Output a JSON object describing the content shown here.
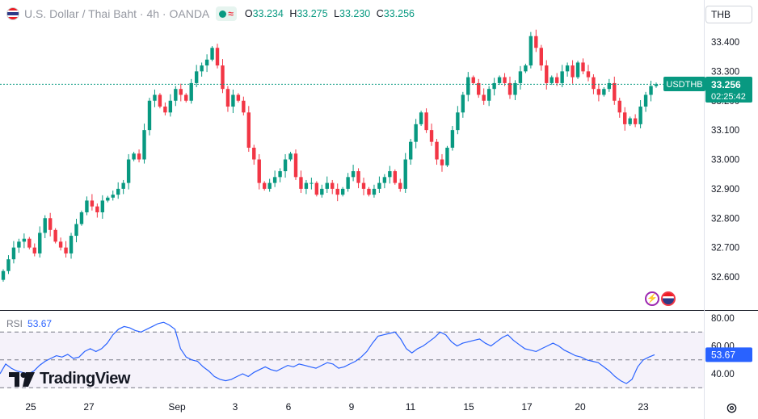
{
  "header": {
    "title": "U.S. Dollar / Thai Baht · 4h · OANDA",
    "open_label": "O",
    "open": "33.234",
    "high_label": "H",
    "high": "33.275",
    "low_label": "L",
    "low": "33.230",
    "close_label": "C",
    "close": "33.256",
    "currency": "THB"
  },
  "price_badge": {
    "symbol": "USDTHB",
    "price": "33.256",
    "countdown": "02:25:42"
  },
  "rsi": {
    "label": "RSI",
    "value": "53.67",
    "levels": [
      70,
      50,
      30
    ]
  },
  "branding": {
    "name": "TradingView"
  },
  "colors": {
    "up": "#089981",
    "down": "#f23645",
    "rsi_line": "#2962ff",
    "rsi_band": "#7e57c2"
  },
  "chart_data": {
    "type": "candlestick",
    "symbol": "USDTHB",
    "interval": "4h",
    "price_axis": {
      "ticks": [
        "33.400",
        "33.300",
        "33.200",
        "33.100",
        "33.000",
        "32.900",
        "32.800",
        "32.700",
        "32.600"
      ],
      "range": [
        32.55,
        33.48
      ]
    },
    "rsi_axis": {
      "ticks": [
        "80.00",
        "60.00",
        "40.00"
      ],
      "range": [
        27,
        84
      ]
    },
    "x_ticks": [
      "25",
      "27",
      "Sep",
      "3",
      "6",
      "9",
      "11",
      "15",
      "17",
      "20",
      "23"
    ],
    "last_price": 33.256,
    "closes": [
      32.62,
      32.66,
      32.7,
      32.72,
      32.73,
      32.7,
      32.68,
      32.75,
      32.8,
      32.76,
      32.72,
      32.7,
      32.68,
      32.74,
      32.78,
      32.82,
      32.86,
      32.84,
      32.82,
      32.86,
      32.87,
      32.88,
      32.9,
      32.92,
      33.0,
      33.02,
      33.0,
      33.1,
      33.2,
      33.22,
      33.18,
      33.16,
      33.2,
      33.24,
      33.22,
      33.2,
      33.26,
      33.3,
      33.32,
      33.34,
      33.38,
      33.32,
      33.24,
      33.18,
      33.22,
      33.2,
      33.16,
      33.04,
      33.0,
      32.92,
      32.9,
      32.92,
      32.94,
      32.96,
      33.0,
      33.02,
      32.94,
      32.9,
      32.92,
      32.92,
      32.88,
      32.9,
      32.92,
      32.9,
      32.88,
      32.9,
      32.94,
      32.96,
      32.92,
      32.9,
      32.88,
      32.9,
      32.92,
      32.94,
      32.96,
      32.92,
      32.9,
      33.0,
      33.06,
      33.12,
      33.16,
      33.1,
      33.06,
      33.0,
      32.98,
      33.04,
      33.1,
      33.16,
      33.22,
      33.28,
      33.26,
      33.22,
      33.2,
      33.24,
      33.26,
      33.28,
      33.26,
      33.22,
      33.26,
      33.3,
      33.32,
      33.42,
      33.38,
      33.32,
      33.26,
      33.28,
      33.26,
      33.3,
      33.32,
      33.28,
      33.33,
      33.3,
      33.28,
      33.24,
      33.22,
      33.24,
      33.26,
      33.2,
      33.16,
      33.12,
      33.14,
      33.12,
      33.18,
      33.22,
      33.25,
      33.256
    ],
    "rsi_values": [
      40,
      47,
      44,
      42,
      41,
      40,
      42,
      46,
      49,
      51,
      53,
      52,
      54,
      51,
      52,
      56,
      58,
      56,
      58,
      62,
      68,
      72,
      74,
      73,
      71,
      70,
      72,
      74,
      76,
      77,
      75,
      72,
      58,
      52,
      50,
      49,
      45,
      42,
      38,
      36,
      35,
      36,
      38,
      40,
      38,
      41,
      43,
      45,
      43,
      42,
      44,
      46,
      45,
      47,
      46,
      45,
      44,
      46,
      48,
      47,
      44,
      45,
      47,
      49,
      52,
      56,
      62,
      67,
      68,
      69,
      70,
      65,
      58,
      55,
      58,
      60,
      63,
      66,
      70,
      68,
      63,
      60,
      62,
      63,
      64,
      65,
      62,
      60,
      63,
      66,
      68,
      64,
      61,
      58,
      57,
      56,
      58,
      60,
      62,
      60,
      57,
      55,
      53,
      52,
      50,
      49,
      48,
      45,
      42,
      38,
      35,
      33,
      36,
      45,
      50,
      52,
      53.67
    ]
  }
}
